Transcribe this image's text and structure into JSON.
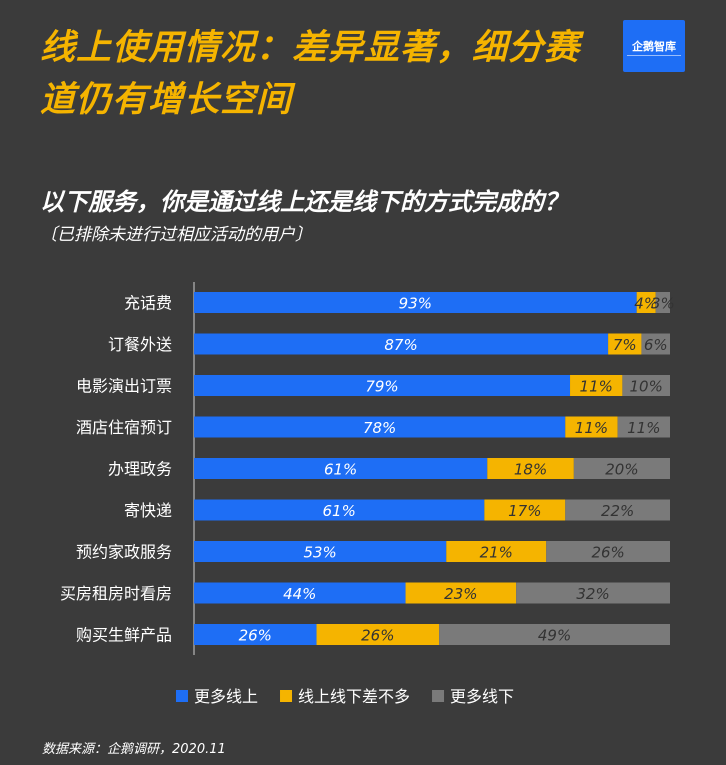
{
  "header": {
    "title": "线上使用情况：差异显著，细分赛道仍有增长空间",
    "logo_text": "企鹅智库"
  },
  "chart_data": {
    "type": "bar",
    "stacked": true,
    "orientation": "horizontal",
    "title": "以下服务，你是通过线上还是线下的方式完成的？",
    "subtitle": "〔已排除未进行过相应活动的用户〕",
    "categories": [
      "充话费",
      "订餐外送",
      "电影演出订票",
      "酒店住宿预订",
      "办理政务",
      "寄快递",
      "预约家政服务",
      "买房租房时看房",
      "购买生鲜产品"
    ],
    "series": [
      {
        "name": "更多线上",
        "color": "#1e6ef5",
        "values": [
          93,
          87,
          79,
          78,
          61,
          61,
          53,
          44,
          26
        ]
      },
      {
        "name": "线上线下差不多",
        "color": "#f5b400",
        "values": [
          4,
          7,
          11,
          11,
          18,
          17,
          21,
          23,
          26
        ]
      },
      {
        "name": "更多线下",
        "color": "#7a7a7a",
        "values": [
          3,
          6,
          10,
          11,
          20,
          22,
          26,
          32,
          49
        ]
      }
    ],
    "value_suffix": "%",
    "legend_position": "bottom",
    "grid": false
  },
  "footer": {
    "source": "数据来源：企鹅调研，2020.11"
  }
}
